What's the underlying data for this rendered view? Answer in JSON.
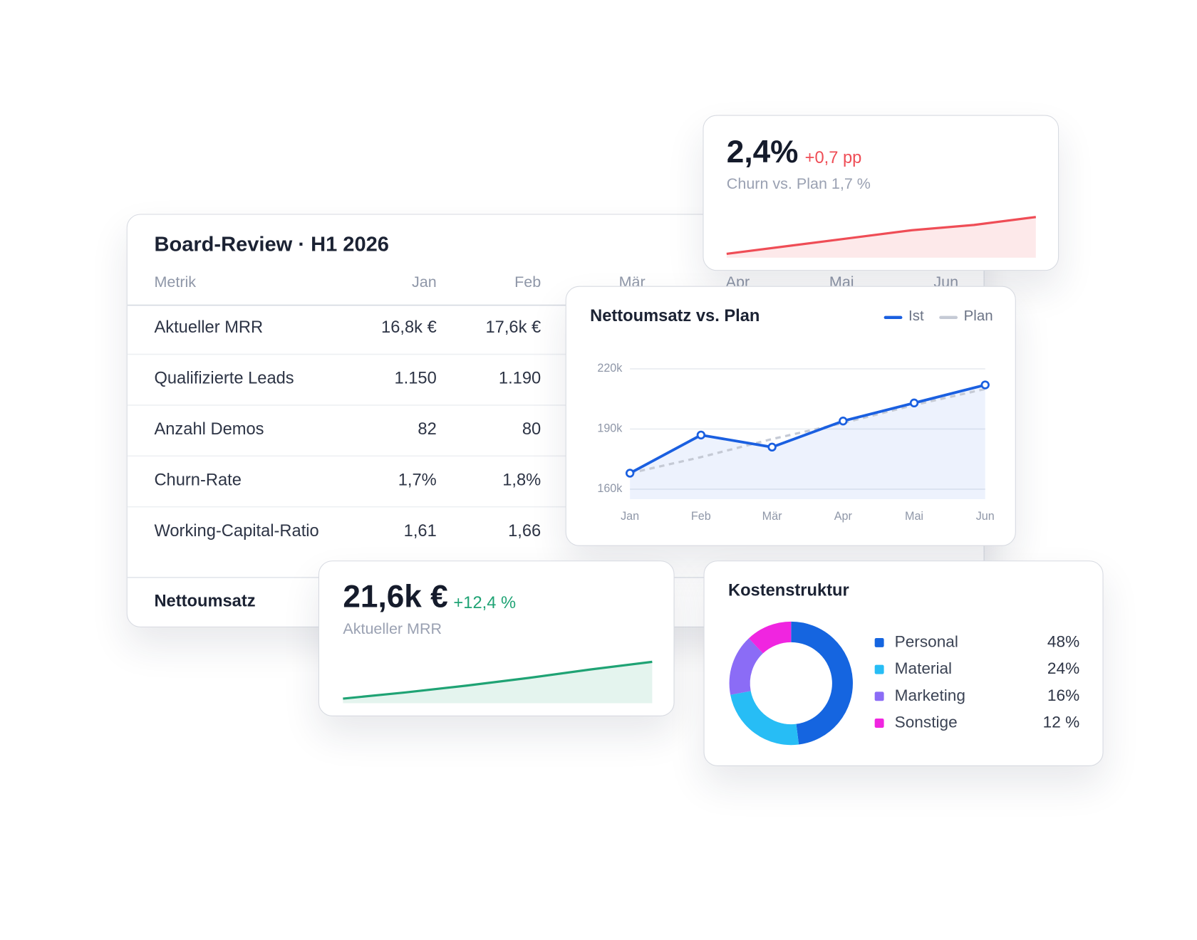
{
  "table": {
    "title": "Board-Review · H1 2026",
    "columns": [
      "Metrik",
      "Jan",
      "Feb",
      "Mär",
      "Apr",
      "Mai",
      "Jun"
    ],
    "rows": [
      [
        "Aktueller MRR",
        "16,8k €",
        "17,6k €"
      ],
      [
        "Qualifizierte Leads",
        "1.150",
        "1.190"
      ],
      [
        "Anzahl Demos",
        "82",
        "80"
      ],
      [
        "Churn-Rate",
        "1,7%",
        "1,8%"
      ],
      [
        "Working-Capital-Ratio",
        "1,61",
        "1,66"
      ]
    ],
    "footer": [
      "Nettoumsatz"
    ]
  },
  "kpis": [
    {
      "value": "2,4%",
      "delta": "+0,7 pp",
      "label": "Churn vs. Plan 1,7 %"
    },
    {
      "value": "21,6k €",
      "delta": "+12,4 %",
      "label": "Aktueller MRR"
    }
  ],
  "chart_data": [
    {
      "type": "line",
      "title": "Nettoumsatz vs. Plan",
      "categories": [
        "Jan",
        "Feb",
        "Mär",
        "Apr",
        "Mai",
        "Jun"
      ],
      "series": [
        {
          "name": "Ist",
          "color": "#1a5fe0",
          "values": [
            168000,
            187000,
            181000,
            194000,
            203000,
            212000
          ]
        },
        {
          "name": "Plan",
          "color": "#c5cad5",
          "values": [
            168000,
            176000,
            185000,
            193000,
            202000,
            210000
          ]
        }
      ],
      "ylim": [
        155000,
        220000
      ],
      "yticks": [
        {
          "value": 160000,
          "label": "160k"
        },
        {
          "value": 190000,
          "label": "190k"
        },
        {
          "value": 220000,
          "label": "220k"
        }
      ],
      "grid": true
    },
    {
      "type": "pie",
      "title": "Kostenstruktur",
      "categories": [
        "Personal",
        "Material",
        "Marketing",
        "Sonstige"
      ],
      "values": [
        48,
        24,
        16,
        12
      ],
      "value_labels": [
        "48%",
        "24%",
        "16%",
        "12 %"
      ],
      "colors": [
        "#1565e0",
        "#27bdf5",
        "#8b6cf6",
        "#f025e0"
      ]
    },
    {
      "type": "area",
      "values": [
        1.7,
        1.85,
        2.0,
        2.15,
        2.25,
        2.4
      ],
      "color": "#ef4d56"
    },
    {
      "type": "area",
      "values": [
        16.8,
        17.6,
        18.5,
        19.5,
        20.6,
        21.6
      ],
      "color": "#1fa374"
    }
  ]
}
